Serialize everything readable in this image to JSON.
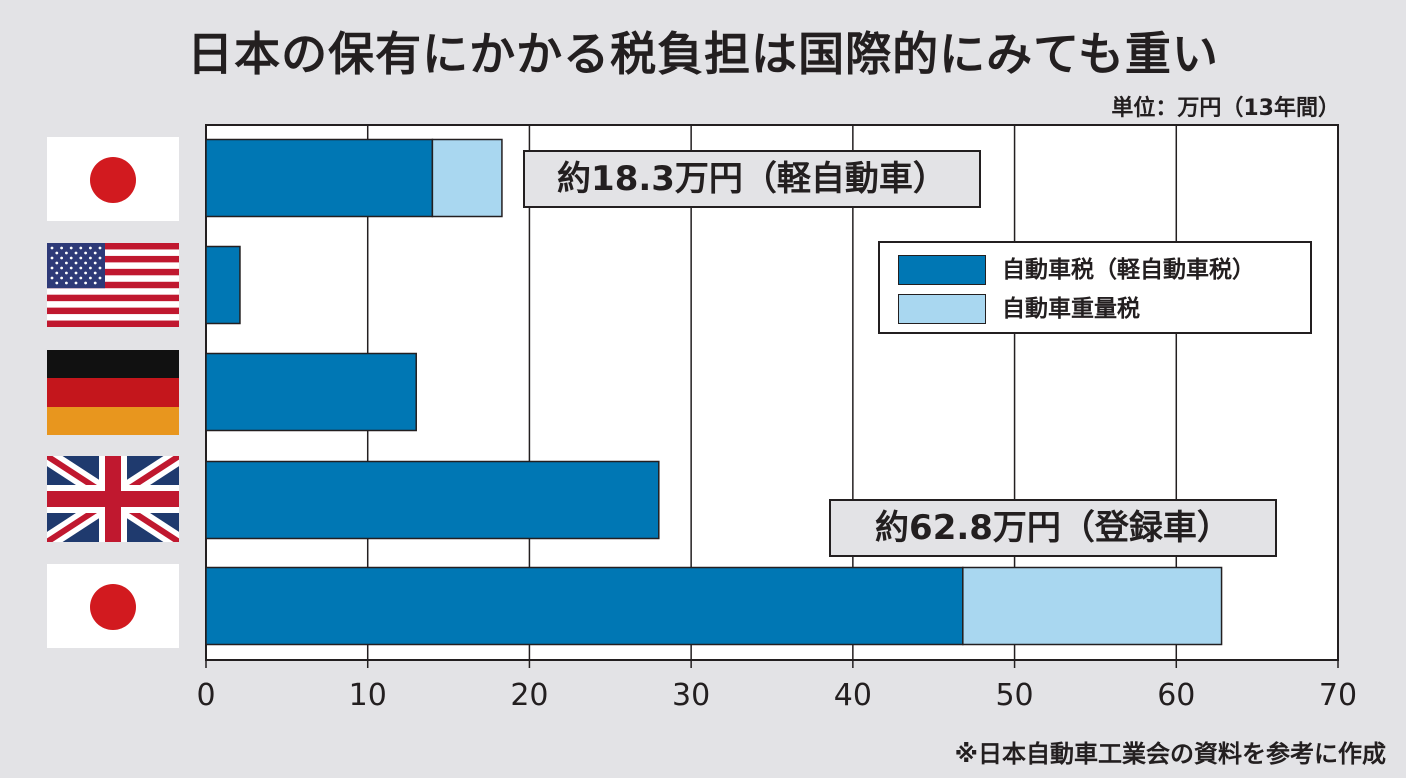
{
  "title": "日本の保有にかかる税負担は国際的にみても重い",
  "unit_label": "単位：万円（13年間）",
  "source_note": "※日本自動車工業会の資料を参考に作成",
  "colors": {
    "series_main": "#0077b4",
    "series_weight": "#a9d7f0",
    "background": "#e3e3e6",
    "plot_bg": "#ffffff"
  },
  "callouts": {
    "kei": "約18.3万円（軽自動車）",
    "registered": "約62.8万円（登録車）"
  },
  "legend": {
    "items": [
      {
        "label": "自動車税（軽自動車税）"
      },
      {
        "label": "自動車重量税"
      }
    ]
  },
  "rows": [
    {
      "flag": "japan-flag"
    },
    {
      "flag": "usa-flag"
    },
    {
      "flag": "germany-flag"
    },
    {
      "flag": "uk-flag"
    },
    {
      "flag": "japan-flag"
    }
  ],
  "chart_data": {
    "type": "bar",
    "orientation": "horizontal",
    "stacked": true,
    "title": "日本の保有にかかる税負担は国際的にみても重い",
    "unit": "単位：万円（13年間）",
    "categories": [
      "日本（軽自動車）",
      "アメリカ",
      "ドイツ",
      "イギリス",
      "日本（登録車）"
    ],
    "series": [
      {
        "name": "自動車税（軽自動車税）",
        "values": [
          14.0,
          2.1,
          13.0,
          28.0,
          46.8
        ]
      },
      {
        "name": "自動車重量税",
        "values": [
          4.3,
          0,
          0,
          0,
          16.0
        ]
      }
    ],
    "xlim": [
      0,
      70
    ],
    "xticks": [
      0,
      10,
      20,
      30,
      40,
      50,
      60,
      70
    ],
    "grid": true,
    "legend_position": "right"
  }
}
